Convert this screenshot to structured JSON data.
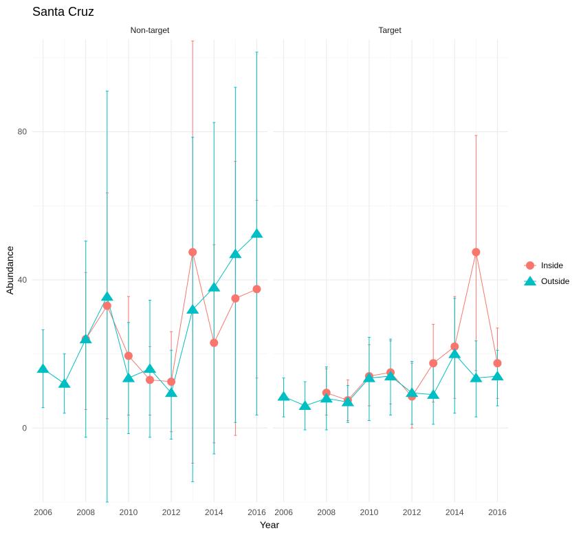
{
  "chart_data": {
    "type": "line",
    "title": "Santa Cruz",
    "xlabel": "Year",
    "ylabel": "Abundance",
    "ylim": [
      -20,
      105
    ],
    "xlim": [
      2005.5,
      2016.5
    ],
    "y_ticks": [
      0,
      40,
      80
    ],
    "x_ticks": [
      2006,
      2008,
      2010,
      2012,
      2014,
      2016
    ],
    "grid": true,
    "legend_position": "right",
    "facets": [
      {
        "label": "Non-target",
        "series": [
          {
            "name": "Inside",
            "color": "#F8766D",
            "marker": "circle",
            "points": [
              {
                "x": 2008,
                "y": 24,
                "lo": 5,
                "hi": 42
              },
              {
                "x": 2009,
                "y": 33,
                "lo": 2.5,
                "hi": 63.5
              },
              {
                "x": 2010,
                "y": 19.5,
                "lo": 3.5,
                "hi": 35.5
              },
              {
                "x": 2011,
                "y": 13,
                "lo": 3.5,
                "hi": 22
              },
              {
                "x": 2012,
                "y": 12.5,
                "lo": -1,
                "hi": 26
              },
              {
                "x": 2013,
                "y": 47.5,
                "lo": -9.5,
                "hi": 104.5
              },
              {
                "x": 2014,
                "y": 23,
                "lo": -4,
                "hi": 49.5
              },
              {
                "x": 2015,
                "y": 35,
                "lo": -2,
                "hi": 72
              },
              {
                "x": 2016,
                "y": 37.5,
                "lo": 13.5,
                "hi": 61.5
              }
            ]
          },
          {
            "name": "Outside",
            "color": "#00BFC4",
            "marker": "triangle",
            "points": [
              {
                "x": 2006,
                "y": 16,
                "lo": 5.5,
                "hi": 26.5
              },
              {
                "x": 2007,
                "y": 12,
                "lo": 4,
                "hi": 20
              },
              {
                "x": 2008,
                "y": 24,
                "lo": -2.5,
                "hi": 50.5
              },
              {
                "x": 2009,
                "y": 35.5,
                "lo": -20,
                "hi": 91
              },
              {
                "x": 2010,
                "y": 13.5,
                "lo": -1.5,
                "hi": 28.5
              },
              {
                "x": 2011,
                "y": 16,
                "lo": -2.5,
                "hi": 34.5
              },
              {
                "x": 2012,
                "y": 9.5,
                "lo": -3,
                "hi": 21
              },
              {
                "x": 2013,
                "y": 32,
                "lo": -14.5,
                "hi": 78.5
              },
              {
                "x": 2014,
                "y": 38,
                "lo": -7,
                "hi": 82.5
              },
              {
                "x": 2015,
                "y": 47,
                "lo": 1.5,
                "hi": 92
              },
              {
                "x": 2016,
                "y": 52.5,
                "lo": 3.5,
                "hi": 101.5
              }
            ]
          }
        ]
      },
      {
        "label": "Target",
        "series": [
          {
            "name": "Inside",
            "color": "#F8766D",
            "marker": "circle",
            "points": [
              {
                "x": 2008,
                "y": 9.5,
                "lo": 3.5,
                "hi": 16
              },
              {
                "x": 2009,
                "y": 7.5,
                "lo": 2,
                "hi": 13
              },
              {
                "x": 2010,
                "y": 14,
                "lo": 6,
                "hi": 22.5
              },
              {
                "x": 2011,
                "y": 15,
                "lo": 6.5,
                "hi": 23.5
              },
              {
                "x": 2012,
                "y": 8.5,
                "lo": 0,
                "hi": 17.5
              },
              {
                "x": 2013,
                "y": 17.5,
                "lo": 7,
                "hi": 28
              },
              {
                "x": 2014,
                "y": 22,
                "lo": 8,
                "hi": 35.5
              },
              {
                "x": 2015,
                "y": 47.5,
                "lo": 15.5,
                "hi": 79
              },
              {
                "x": 2016,
                "y": 17.5,
                "lo": 8,
                "hi": 27
              }
            ]
          },
          {
            "name": "Outside",
            "color": "#00BFC4",
            "marker": "triangle",
            "points": [
              {
                "x": 2006,
                "y": 8.5,
                "lo": 3,
                "hi": 13.5
              },
              {
                "x": 2007,
                "y": 6,
                "lo": -0.5,
                "hi": 12.5
              },
              {
                "x": 2008,
                "y": 8,
                "lo": -0.5,
                "hi": 16.5
              },
              {
                "x": 2009,
                "y": 7,
                "lo": 1.5,
                "hi": 11.5
              },
              {
                "x": 2010,
                "y": 13.5,
                "lo": 2,
                "hi": 24.5
              },
              {
                "x": 2011,
                "y": 14,
                "lo": 3.5,
                "hi": 24
              },
              {
                "x": 2012,
                "y": 9.5,
                "lo": 1,
                "hi": 18
              },
              {
                "x": 2013,
                "y": 9,
                "lo": 1,
                "hi": 17.5
              },
              {
                "x": 2014,
                "y": 20,
                "lo": 4,
                "hi": 35
              },
              {
                "x": 2015,
                "y": 13.5,
                "lo": 3,
                "hi": 23.5
              },
              {
                "x": 2016,
                "y": 14,
                "lo": 6,
                "hi": 21
              }
            ]
          }
        ]
      }
    ]
  }
}
